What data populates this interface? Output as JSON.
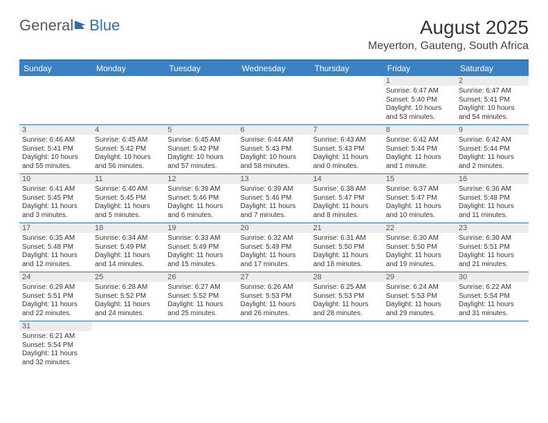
{
  "logo": {
    "text_gray": "General",
    "text_blue": "Blue"
  },
  "title": "August 2025",
  "location": "Meyerton, Gauteng, South Africa",
  "colors": {
    "header_bar": "#3b82c4",
    "accent_line": "#2f6fb0",
    "daynum_bg": "#ececec",
    "text": "#333333",
    "logo_gray": "#5a5a5a",
    "logo_blue": "#2f6fb0"
  },
  "days_of_week": [
    "Sunday",
    "Monday",
    "Tuesday",
    "Wednesday",
    "Thursday",
    "Friday",
    "Saturday"
  ],
  "weeks": [
    [
      {
        "n": "",
        "sr": "",
        "ss": "",
        "dl": ""
      },
      {
        "n": "",
        "sr": "",
        "ss": "",
        "dl": ""
      },
      {
        "n": "",
        "sr": "",
        "ss": "",
        "dl": ""
      },
      {
        "n": "",
        "sr": "",
        "ss": "",
        "dl": ""
      },
      {
        "n": "",
        "sr": "",
        "ss": "",
        "dl": ""
      },
      {
        "n": "1",
        "sr": "Sunrise: 6:47 AM",
        "ss": "Sunset: 5:40 PM",
        "dl": "Daylight: 10 hours and 53 minutes."
      },
      {
        "n": "2",
        "sr": "Sunrise: 6:47 AM",
        "ss": "Sunset: 5:41 PM",
        "dl": "Daylight: 10 hours and 54 minutes."
      }
    ],
    [
      {
        "n": "3",
        "sr": "Sunrise: 6:46 AM",
        "ss": "Sunset: 5:41 PM",
        "dl": "Daylight: 10 hours and 55 minutes."
      },
      {
        "n": "4",
        "sr": "Sunrise: 6:45 AM",
        "ss": "Sunset: 5:42 PM",
        "dl": "Daylight: 10 hours and 56 minutes."
      },
      {
        "n": "5",
        "sr": "Sunrise: 6:45 AM",
        "ss": "Sunset: 5:42 PM",
        "dl": "Daylight: 10 hours and 57 minutes."
      },
      {
        "n": "6",
        "sr": "Sunrise: 6:44 AM",
        "ss": "Sunset: 5:43 PM",
        "dl": "Daylight: 10 hours and 58 minutes."
      },
      {
        "n": "7",
        "sr": "Sunrise: 6:43 AM",
        "ss": "Sunset: 5:43 PM",
        "dl": "Daylight: 11 hours and 0 minutes."
      },
      {
        "n": "8",
        "sr": "Sunrise: 6:42 AM",
        "ss": "Sunset: 5:44 PM",
        "dl": "Daylight: 11 hours and 1 minute."
      },
      {
        "n": "9",
        "sr": "Sunrise: 6:42 AM",
        "ss": "Sunset: 5:44 PM",
        "dl": "Daylight: 11 hours and 2 minutes."
      }
    ],
    [
      {
        "n": "10",
        "sr": "Sunrise: 6:41 AM",
        "ss": "Sunset: 5:45 PM",
        "dl": "Daylight: 11 hours and 3 minutes."
      },
      {
        "n": "11",
        "sr": "Sunrise: 6:40 AM",
        "ss": "Sunset: 5:45 PM",
        "dl": "Daylight: 11 hours and 5 minutes."
      },
      {
        "n": "12",
        "sr": "Sunrise: 6:39 AM",
        "ss": "Sunset: 5:46 PM",
        "dl": "Daylight: 11 hours and 6 minutes."
      },
      {
        "n": "13",
        "sr": "Sunrise: 6:39 AM",
        "ss": "Sunset: 5:46 PM",
        "dl": "Daylight: 11 hours and 7 minutes."
      },
      {
        "n": "14",
        "sr": "Sunrise: 6:38 AM",
        "ss": "Sunset: 5:47 PM",
        "dl": "Daylight: 11 hours and 8 minutes."
      },
      {
        "n": "15",
        "sr": "Sunrise: 6:37 AM",
        "ss": "Sunset: 5:47 PM",
        "dl": "Daylight: 11 hours and 10 minutes."
      },
      {
        "n": "16",
        "sr": "Sunrise: 6:36 AM",
        "ss": "Sunset: 5:48 PM",
        "dl": "Daylight: 11 hours and 11 minutes."
      }
    ],
    [
      {
        "n": "17",
        "sr": "Sunrise: 6:35 AM",
        "ss": "Sunset: 5:48 PM",
        "dl": "Daylight: 11 hours and 12 minutes."
      },
      {
        "n": "18",
        "sr": "Sunrise: 6:34 AM",
        "ss": "Sunset: 5:49 PM",
        "dl": "Daylight: 11 hours and 14 minutes."
      },
      {
        "n": "19",
        "sr": "Sunrise: 6:33 AM",
        "ss": "Sunset: 5:49 PM",
        "dl": "Daylight: 11 hours and 15 minutes."
      },
      {
        "n": "20",
        "sr": "Sunrise: 6:32 AM",
        "ss": "Sunset: 5:49 PM",
        "dl": "Daylight: 11 hours and 17 minutes."
      },
      {
        "n": "21",
        "sr": "Sunrise: 6:31 AM",
        "ss": "Sunset: 5:50 PM",
        "dl": "Daylight: 11 hours and 18 minutes."
      },
      {
        "n": "22",
        "sr": "Sunrise: 6:30 AM",
        "ss": "Sunset: 5:50 PM",
        "dl": "Daylight: 11 hours and 19 minutes."
      },
      {
        "n": "23",
        "sr": "Sunrise: 6:30 AM",
        "ss": "Sunset: 5:51 PM",
        "dl": "Daylight: 11 hours and 21 minutes."
      }
    ],
    [
      {
        "n": "24",
        "sr": "Sunrise: 6:29 AM",
        "ss": "Sunset: 5:51 PM",
        "dl": "Daylight: 11 hours and 22 minutes."
      },
      {
        "n": "25",
        "sr": "Sunrise: 6:28 AM",
        "ss": "Sunset: 5:52 PM",
        "dl": "Daylight: 11 hours and 24 minutes."
      },
      {
        "n": "26",
        "sr": "Sunrise: 6:27 AM",
        "ss": "Sunset: 5:52 PM",
        "dl": "Daylight: 11 hours and 25 minutes."
      },
      {
        "n": "27",
        "sr": "Sunrise: 6:26 AM",
        "ss": "Sunset: 5:53 PM",
        "dl": "Daylight: 11 hours and 26 minutes."
      },
      {
        "n": "28",
        "sr": "Sunrise: 6:25 AM",
        "ss": "Sunset: 5:53 PM",
        "dl": "Daylight: 11 hours and 28 minutes."
      },
      {
        "n": "29",
        "sr": "Sunrise: 6:24 AM",
        "ss": "Sunset: 5:53 PM",
        "dl": "Daylight: 11 hours and 29 minutes."
      },
      {
        "n": "30",
        "sr": "Sunrise: 6:22 AM",
        "ss": "Sunset: 5:54 PM",
        "dl": "Daylight: 11 hours and 31 minutes."
      }
    ],
    [
      {
        "n": "31",
        "sr": "Sunrise: 6:21 AM",
        "ss": "Sunset: 5:54 PM",
        "dl": "Daylight: 11 hours and 32 minutes."
      },
      {
        "n": "",
        "sr": "",
        "ss": "",
        "dl": ""
      },
      {
        "n": "",
        "sr": "",
        "ss": "",
        "dl": ""
      },
      {
        "n": "",
        "sr": "",
        "ss": "",
        "dl": ""
      },
      {
        "n": "",
        "sr": "",
        "ss": "",
        "dl": ""
      },
      {
        "n": "",
        "sr": "",
        "ss": "",
        "dl": ""
      },
      {
        "n": "",
        "sr": "",
        "ss": "",
        "dl": ""
      }
    ]
  ]
}
